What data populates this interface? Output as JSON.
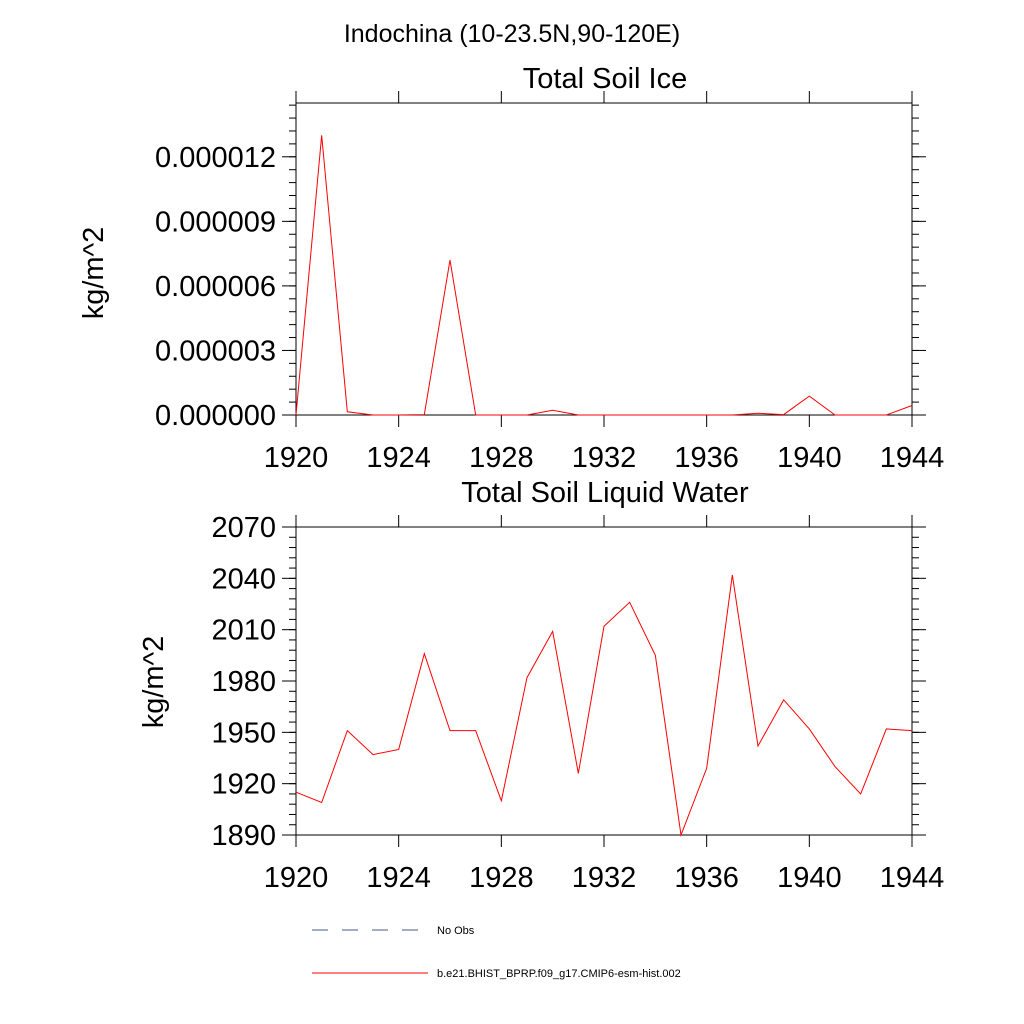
{
  "figure_title": "Indochina (10-23.5N,90-120E)",
  "legend": [
    {
      "label": "No Obs",
      "style": "dashed",
      "color": "#4a5a8a"
    },
    {
      "label": "b.e21.BHIST_BPRP.f09_g17.CMIP6-esm-hist.002",
      "style": "solid",
      "color": "#ff0000"
    }
  ],
  "colors": {
    "series": "#ff0000",
    "axis": "#000000"
  },
  "chart_data": [
    {
      "type": "line",
      "title": "Total Soil Ice",
      "xlabel": "",
      "ylabel": "kg/m^2",
      "xlim": [
        1920,
        1944
      ],
      "ylim": [
        0,
        1.45e-05
      ],
      "xticks": [
        1920,
        1924,
        1928,
        1932,
        1936,
        1940,
        1944
      ],
      "yticks": [
        0,
        3e-06,
        6e-06,
        9e-06,
        1.2e-05
      ],
      "ytick_labels": [
        "0.000000",
        "0.000003",
        "0.000006",
        "0.000009",
        "0.000012"
      ],
      "grid": false,
      "series": [
        {
          "x": [
            1920,
            1921,
            1922,
            1923,
            1924,
            1925,
            1926,
            1927,
            1928,
            1929,
            1930,
            1931,
            1932,
            1933,
            1934,
            1935,
            1936,
            1937,
            1938,
            1939,
            1940,
            1941,
            1942,
            1943,
            1944
          ],
          "values": [
            0,
            1.3e-05,
            1.5e-07,
            0,
            0,
            2e-08,
            7.2e-06,
            0,
            0,
            0,
            2.2e-07,
            0,
            0,
            0,
            0,
            0,
            0,
            0,
            8e-08,
            2e-08,
            8.8e-07,
            0,
            0,
            0,
            4.4e-07
          ]
        }
      ]
    },
    {
      "type": "line",
      "title": "Total Soil Liquid Water",
      "xlabel": "",
      "ylabel": "kg/m^2",
      "xlim": [
        1920,
        1944
      ],
      "ylim": [
        1890,
        2070
      ],
      "xticks": [
        1920,
        1924,
        1928,
        1932,
        1936,
        1940,
        1944
      ],
      "yticks": [
        1890,
        1920,
        1950,
        1980,
        2010,
        2040,
        2070
      ],
      "ytick_labels": [
        "1890",
        "1920",
        "1950",
        "1980",
        "2010",
        "2040",
        "2070"
      ],
      "grid": false,
      "series": [
        {
          "x": [
            1920,
            1921,
            1922,
            1923,
            1924,
            1925,
            1926,
            1927,
            1928,
            1929,
            1930,
            1931,
            1932,
            1933,
            1934,
            1935,
            1936,
            1937,
            1938,
            1939,
            1940,
            1941,
            1942,
            1943,
            1944
          ],
          "values": [
            1915,
            1909,
            1951,
            1937,
            1940,
            1996,
            1951,
            1951,
            1910,
            1982,
            2009,
            1926,
            2012,
            2026,
            1995,
            1890,
            1929,
            2042,
            1942,
            1969,
            1952,
            1930,
            1914,
            1952,
            1951
          ]
        }
      ]
    }
  ]
}
